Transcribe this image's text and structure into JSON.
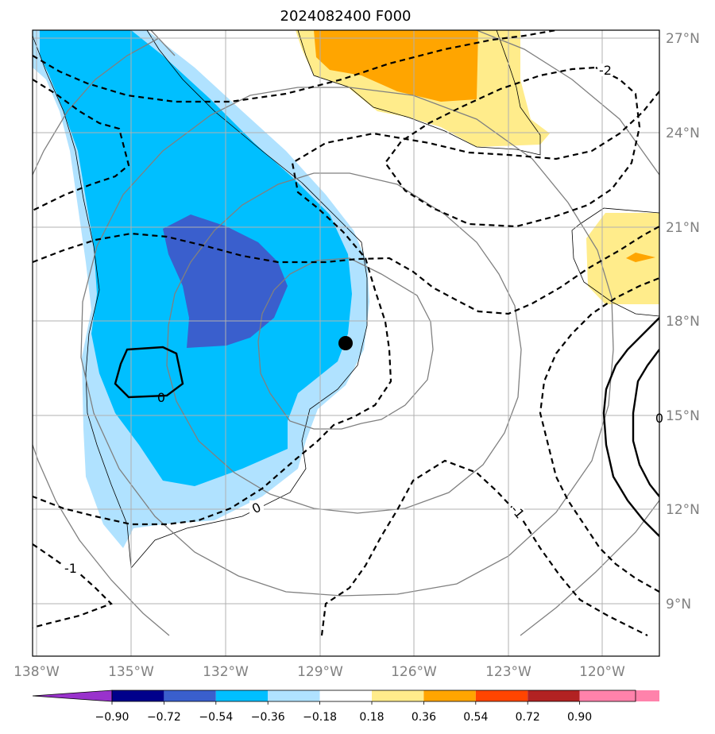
{
  "title": "2024082400 F000",
  "map": {
    "lon_labels": [
      "138°W",
      "135°W",
      "132°W",
      "129°W",
      "126°W",
      "123°W",
      "120°W"
    ],
    "lat_labels": [
      "27°N",
      "24°N",
      "21°N",
      "18°N",
      "15°N",
      "12°N",
      "9°N"
    ],
    "storm_center": {
      "lon": "128.8°W",
      "lat": "17.3°N"
    },
    "contour_labels": [
      "-2",
      "-1",
      "0",
      "0",
      "-1",
      "0"
    ]
  },
  "colorbar": {
    "ticks": [
      "−0.90",
      "−0.72",
      "−0.54",
      "−0.36",
      "−0.18",
      "0.18",
      "0.36",
      "0.54",
      "0.72",
      "0.90"
    ],
    "colors": [
      "#9932cc",
      "#00008b",
      "#3a5fcd",
      "#00bfff",
      "#b0e2ff",
      "#ffffff",
      "#ffec8b",
      "#ffa500",
      "#ff4500",
      "#b22222",
      "#ff82ab"
    ]
  },
  "colors": {
    "neg_light": "#b0e2ff",
    "neg_mid": "#00bfff",
    "neg_dark": "#3a5fcd",
    "pos_light": "#ffec8b",
    "pos_mid": "#ffa500",
    "grid": "#b0b0b0",
    "range_rings": "#808080"
  }
}
